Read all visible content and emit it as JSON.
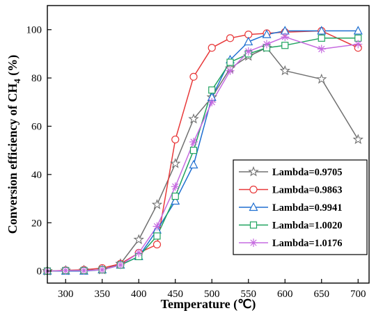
{
  "chart_data": {
    "type": "line",
    "xlabel": "Temperature (℃)",
    "ylabel": "Conversion efficiency of CH",
    "ylabel_sub": "4",
    "ylabel_suffix": " (%)",
    "xlim": [
      275,
      715
    ],
    "ylim": [
      -5,
      110
    ],
    "xticks": [
      300,
      350,
      400,
      450,
      500,
      550,
      600,
      650,
      700
    ],
    "yticks": [
      0,
      20,
      40,
      60,
      80,
      100
    ],
    "grid": false,
    "legend_position": "bottom-right",
    "x": [
      275,
      300,
      325,
      350,
      375,
      400,
      425,
      450,
      475,
      500,
      525,
      550,
      575,
      600,
      650,
      700
    ],
    "series": [
      {
        "name": "Lambda=0.9705",
        "color": "#707070",
        "marker": "star",
        "values": [
          0,
          0.2,
          0.3,
          0.5,
          3,
          13,
          27.5,
          44.5,
          63,
          72,
          84,
          89,
          92.5,
          83,
          79.5,
          54.5
        ]
      },
      {
        "name": "Lambda=0.9863",
        "color": "#e8393a",
        "marker": "circle",
        "values": [
          0,
          0.3,
          0.5,
          1.2,
          3,
          7.5,
          11,
          54.5,
          80.5,
          92.5,
          96.5,
          98,
          98.5,
          99,
          99.5,
          92.5
        ]
      },
      {
        "name": "Lambda=0.9941",
        "color": "#1f6fd1",
        "marker": "triangle",
        "values": [
          0,
          0,
          0,
          0.5,
          2.5,
          6,
          17,
          29,
          44,
          72,
          87.5,
          95,
          98,
          99.5,
          99.5,
          99.5
        ]
      },
      {
        "name": "Lambda=1.0020",
        "color": "#1fa35f",
        "marker": "square",
        "values": [
          0,
          0.2,
          0.2,
          0.5,
          2.5,
          6,
          14.5,
          31,
          50,
          75,
          86.5,
          90,
          92.5,
          93.5,
          96.5,
          96.5
        ]
      },
      {
        "name": "Lambda=1.0176",
        "color": "#c66ae0",
        "marker": "asterisk",
        "values": [
          0,
          0.2,
          0.2,
          0.5,
          2.5,
          7.5,
          18.5,
          35,
          53.5,
          70,
          83,
          91,
          94,
          97,
          92,
          94
        ]
      }
    ],
    "legend_border_color": "#000000",
    "label_colors": {
      "Lambda=0.9705": "#707070",
      "Lambda=0.9863": "#b5683a",
      "Lambda=0.9941": "#1f6fd1",
      "Lambda=1.0020": "#1fa35f",
      "Lambda=1.0176": "#c66ae0"
    }
  }
}
